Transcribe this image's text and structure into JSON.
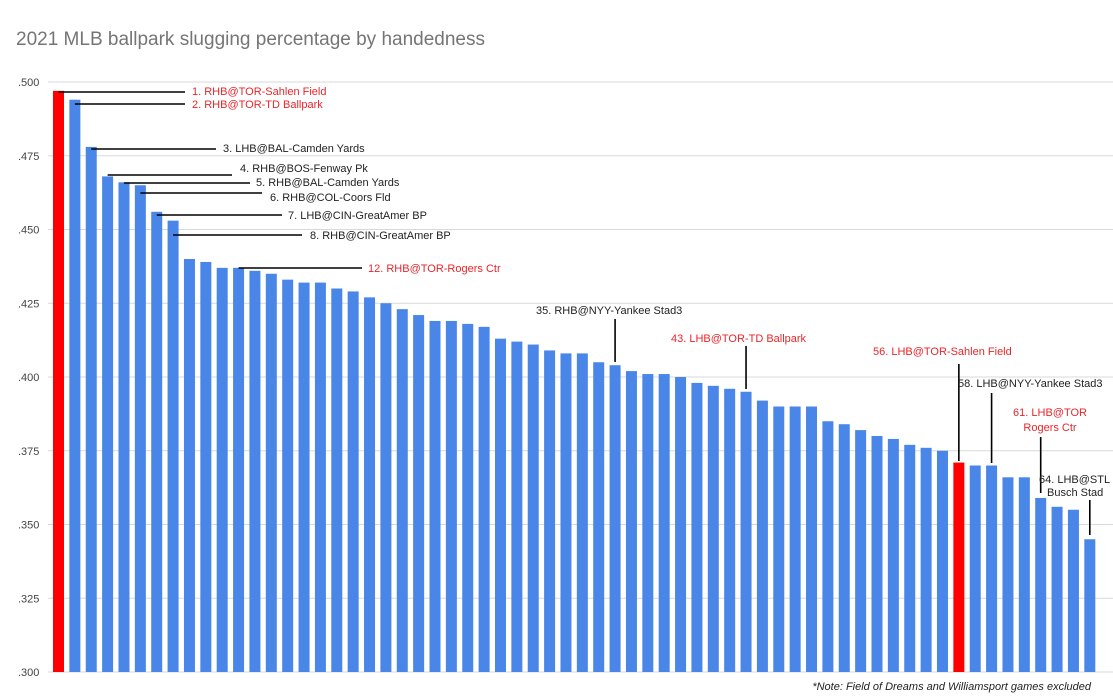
{
  "title": "2021 MLB ballpark slugging percentage by handedness",
  "note": "*Note: Field of Dreams and Williamsport games excluded",
  "colors": {
    "default_bar": "#4a86e8",
    "highlight_bar": "#ff0000",
    "grid": "#d9d9d9",
    "annotation_dark": "#222222",
    "annotation_red": "#e8262a"
  },
  "chart_data": {
    "type": "bar",
    "ylim": [
      0.3,
      0.5
    ],
    "yticks": [
      {
        "value": 0.3,
        "label": ".300"
      },
      {
        "value": 0.325,
        "label": ".325"
      },
      {
        "value": 0.35,
        "label": ".350"
      },
      {
        "value": 0.375,
        "label": ".375"
      },
      {
        "value": 0.4,
        "label": ".400"
      },
      {
        "value": 0.425,
        "label": ".425"
      },
      {
        "value": 0.45,
        "label": ".450"
      },
      {
        "value": 0.475,
        "label": ".475"
      },
      {
        "value": 0.5,
        "label": ".500"
      }
    ],
    "grid": true,
    "values": [
      0.497,
      0.494,
      0.478,
      0.468,
      0.466,
      0.465,
      0.456,
      0.453,
      0.44,
      0.439,
      0.437,
      0.437,
      0.436,
      0.435,
      0.433,
      0.432,
      0.432,
      0.43,
      0.429,
      0.427,
      0.425,
      0.423,
      0.421,
      0.419,
      0.419,
      0.418,
      0.417,
      0.413,
      0.412,
      0.411,
      0.409,
      0.408,
      0.408,
      0.405,
      0.404,
      0.402,
      0.401,
      0.401,
      0.4,
      0.398,
      0.397,
      0.396,
      0.395,
      0.392,
      0.39,
      0.39,
      0.39,
      0.385,
      0.384,
      0.382,
      0.38,
      0.379,
      0.377,
      0.376,
      0.375,
      0.371,
      0.37,
      0.37,
      0.366,
      0.366,
      0.359,
      0.356,
      0.355,
      0.345
    ],
    "highlighted_ranks": [
      1,
      56
    ],
    "annotations": [
      {
        "rank": 1,
        "text": "1. RHB@TOR-Sahlen Field",
        "color": "red"
      },
      {
        "rank": 2,
        "text": "2. RHB@TOR-TD Ballpark",
        "color": "red"
      },
      {
        "rank": 3,
        "text": "3. LHB@BAL-Camden Yards",
        "color": "dark"
      },
      {
        "rank": 4,
        "text": "4. RHB@BOS-Fenway Pk",
        "color": "dark"
      },
      {
        "rank": 5,
        "text": "5. RHB@BAL-Camden Yards",
        "color": "dark"
      },
      {
        "rank": 6,
        "text": "6. RHB@COL-Coors Fld",
        "color": "dark"
      },
      {
        "rank": 7,
        "text": "7. LHB@CIN-GreatAmer BP",
        "color": "dark"
      },
      {
        "rank": 8,
        "text": "8. RHB@CIN-GreatAmer BP",
        "color": "dark"
      },
      {
        "rank": 12,
        "text": "12. RHB@TOR-Rogers Ctr",
        "color": "red"
      },
      {
        "rank": 35,
        "text": "35. RHB@NYY-Yankee Stad3",
        "color": "dark"
      },
      {
        "rank": 43,
        "text": "43. LHB@TOR-TD Ballpark",
        "color": "red"
      },
      {
        "rank": 56,
        "text": "56. LHB@TOR-Sahlen Field",
        "color": "red"
      },
      {
        "rank": 58,
        "text": "58. LHB@NYY-Yankee Stad3",
        "color": "dark"
      },
      {
        "rank": 61,
        "text": "61. LHB@TOR",
        "text2": "Rogers Ctr",
        "color": "red"
      },
      {
        "rank": 64,
        "text": "64. LHB@STL",
        "text2": "Busch Stad",
        "color": "dark"
      }
    ]
  }
}
